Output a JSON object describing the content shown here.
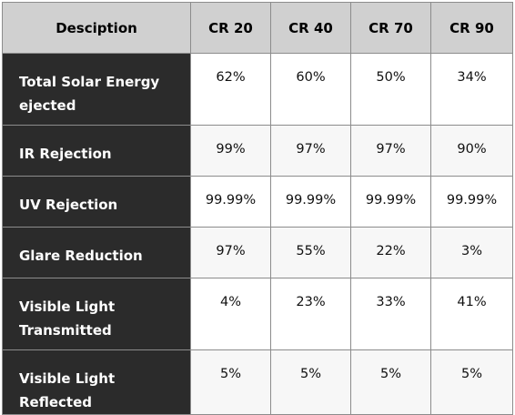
{
  "headers": [
    "Desciption",
    "CR 20",
    "CR 40",
    "CR 70",
    "CR 90"
  ],
  "rows": [
    {
      "label": "Total Solar Energy ejected",
      "values": [
        "62%",
        "60%",
        "50%",
        "34%"
      ]
    },
    {
      "label": "IR Rejection",
      "values": [
        "99%",
        "97%",
        "97%",
        "90%"
      ]
    },
    {
      "label": "UV Rejection",
      "values": [
        "99.99%",
        "99.99%",
        "99.99%",
        "99.99%"
      ]
    },
    {
      "label": "Glare Reduction",
      "values": [
        "97%",
        "55%",
        "22%",
        "3%"
      ]
    },
    {
      "label": "Visible Light Transmitted",
      "values": [
        "4%",
        "23%",
        "33%",
        "41%"
      ]
    },
    {
      "label": "Visible Light Reflected",
      "values": [
        "5%",
        "5%",
        "5%",
        "5%"
      ]
    }
  ]
}
